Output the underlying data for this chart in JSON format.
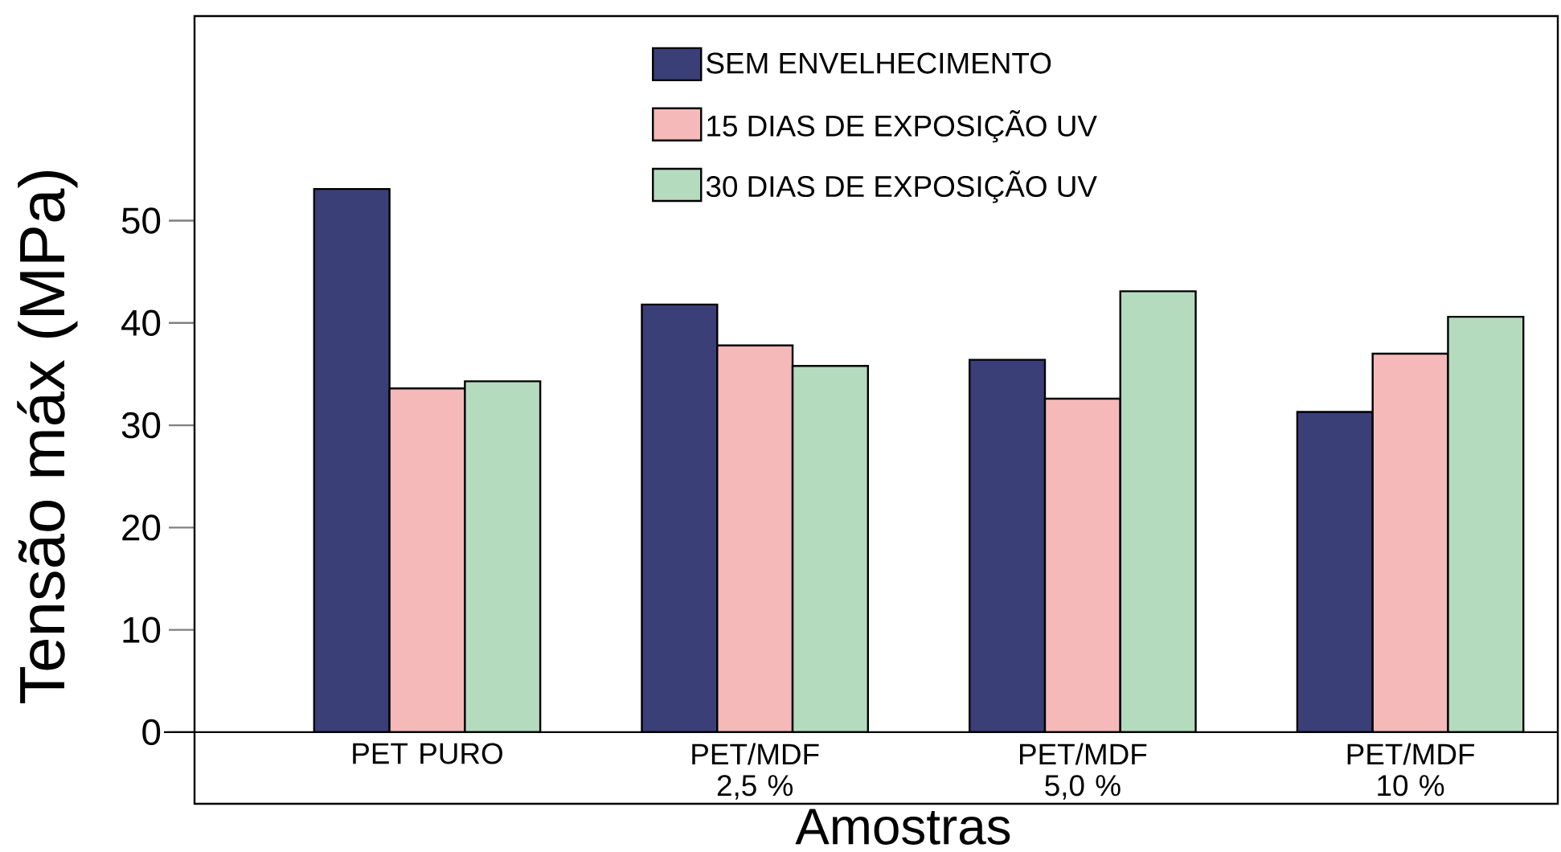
{
  "chart_data": {
    "type": "bar",
    "xlabel": "Amostras",
    "ylabel": "Tensão máx (MPa)",
    "categories": [
      "PET PURO",
      "PET/MDF 2,5 %",
      "PET/MDF 5,0 %",
      "PET/MDF 10 %"
    ],
    "series": [
      {
        "name": "SEM ENVELHECIMENTO",
        "color": "#3b3f78",
        "values": [
          53.1,
          41.8,
          36.4,
          31.3
        ]
      },
      {
        "name": "15 DIAS DE EXPOSIÇÃO UV",
        "color": "#f5b9b9",
        "values": [
          33.6,
          37.8,
          32.6,
          37.0
        ]
      },
      {
        "name": "30 DIAS DE EXPOSIÇÃO UV",
        "color": "#b5dbbe",
        "values": [
          34.3,
          35.8,
          43.1,
          40.6
        ]
      }
    ],
    "ylim": [
      -7,
      70
    ],
    "yticks": [
      0,
      10,
      20,
      30,
      40,
      50
    ],
    "legend": "top"
  }
}
